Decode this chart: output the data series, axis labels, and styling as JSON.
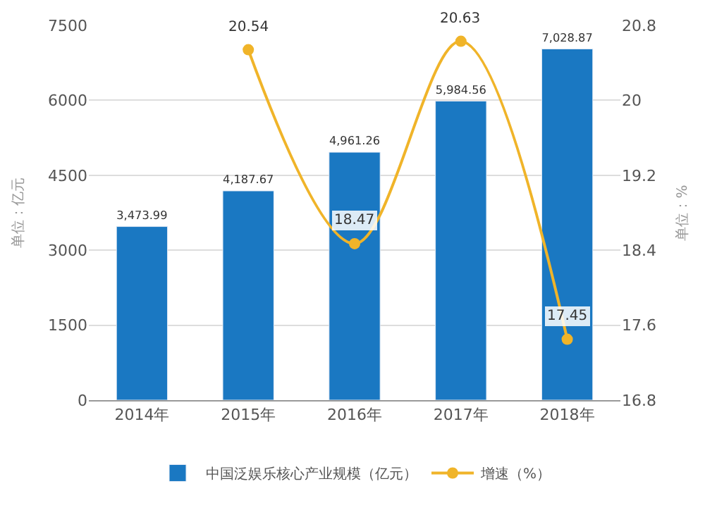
{
  "chart_data": {
    "type": "bar",
    "categories": [
      "2014年",
      "2015年",
      "2016年",
      "2017年",
      "2018年"
    ],
    "series": [
      {
        "name": "中国泛娱乐核心产业规模（亿元）",
        "color": "#1a78c2",
        "values": [
          3473.99,
          4187.67,
          4961.26,
          5984.56,
          7028.87
        ],
        "value_labels": [
          "3,473.99",
          "4,187.67",
          "4,961.26",
          "5,984.56",
          "7,028.87"
        ]
      },
      {
        "name": "增速（%）",
        "type": "line",
        "axis": "y2",
        "color": "#f0b429",
        "values": [
          null,
          20.54,
          18.47,
          20.63,
          17.45
        ],
        "value_labels": [
          null,
          "20.54",
          "18.47",
          "20.63",
          "17.45"
        ]
      }
    ],
    "ylabel": "单位：亿元",
    "y2label": "单位：%",
    "ylim": [
      0,
      7500
    ],
    "yticks": [
      0,
      1500,
      3000,
      4500,
      6000,
      7500
    ],
    "y2lim": [
      16.8,
      20.8
    ],
    "y2ticks": [
      16.8,
      17.6,
      18.4,
      19.2,
      20,
      20.8
    ],
    "grid": "y",
    "legend": "bottom",
    "marker": "circle"
  }
}
